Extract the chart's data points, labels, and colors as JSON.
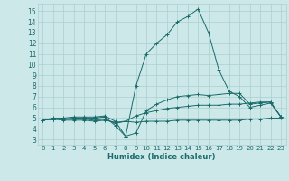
{
  "xlabel": "Humidex (Indice chaleur)",
  "x_ticks": [
    0,
    1,
    2,
    3,
    4,
    5,
    6,
    7,
    8,
    9,
    10,
    11,
    12,
    13,
    14,
    15,
    16,
    17,
    18,
    19,
    20,
    21,
    22,
    23
  ],
  "xlim": [
    -0.5,
    23.5
  ],
  "ylim": [
    2.5,
    15.7
  ],
  "y_ticks": [
    3,
    4,
    5,
    6,
    7,
    8,
    9,
    10,
    11,
    12,
    13,
    14,
    15
  ],
  "bg_color": "#cde8e8",
  "line_color": "#1a6b6b",
  "grid_color": "#aacfcf",
  "series": [
    [
      4.8,
      4.9,
      4.8,
      4.8,
      4.8,
      4.7,
      4.8,
      4.6,
      4.7,
      4.6,
      4.7,
      4.7,
      4.7,
      4.8,
      4.8,
      4.8,
      4.8,
      4.8,
      4.8,
      4.8,
      4.9,
      4.9,
      5.0,
      5.0
    ],
    [
      4.8,
      4.9,
      4.9,
      4.9,
      4.9,
      4.8,
      4.9,
      4.5,
      4.7,
      5.2,
      5.5,
      5.7,
      5.9,
      6.0,
      6.1,
      6.2,
      6.2,
      6.2,
      6.3,
      6.3,
      6.4,
      6.5,
      6.5,
      5.1
    ],
    [
      4.8,
      4.9,
      4.9,
      5.0,
      5.0,
      5.0,
      5.1,
      4.3,
      3.3,
      3.6,
      5.7,
      6.3,
      6.7,
      7.0,
      7.1,
      7.2,
      7.1,
      7.2,
      7.3,
      7.3,
      6.3,
      6.4,
      6.5,
      5.1
    ],
    [
      4.8,
      5.0,
      5.0,
      5.1,
      5.1,
      5.1,
      5.2,
      4.7,
      3.3,
      8.0,
      11.0,
      12.0,
      12.8,
      14.0,
      14.5,
      15.2,
      13.0,
      9.5,
      7.5,
      7.0,
      6.0,
      6.2,
      6.4,
      5.1
    ]
  ],
  "marker": "+"
}
